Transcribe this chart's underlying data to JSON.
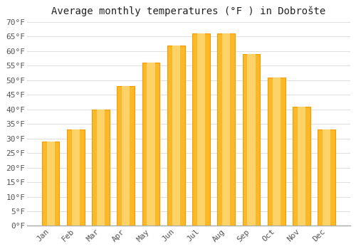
{
  "title": "Average monthly temperatures (°F ) in Dobrošte",
  "months": [
    "Jan",
    "Feb",
    "Mar",
    "Apr",
    "May",
    "Jun",
    "Jul",
    "Aug",
    "Sep",
    "Oct",
    "Nov",
    "Dec"
  ],
  "values": [
    29.0,
    33.0,
    40.0,
    48.0,
    56.0,
    62.0,
    66.0,
    66.0,
    59.0,
    51.0,
    41.0,
    33.0
  ],
  "bar_color_main": "#FBB829",
  "bar_color_light": "#FDD268",
  "bar_color_dark": "#F59B00",
  "background_color": "#FFFFFF",
  "grid_color": "#E0E0E0",
  "ylim": [
    0,
    70
  ],
  "yticks": [
    0,
    5,
    10,
    15,
    20,
    25,
    30,
    35,
    40,
    45,
    50,
    55,
    60,
    65,
    70
  ],
  "title_fontsize": 10,
  "tick_fontsize": 8,
  "bar_width": 0.7,
  "tick_color": "#555555",
  "spine_color": "#AAAAAA"
}
